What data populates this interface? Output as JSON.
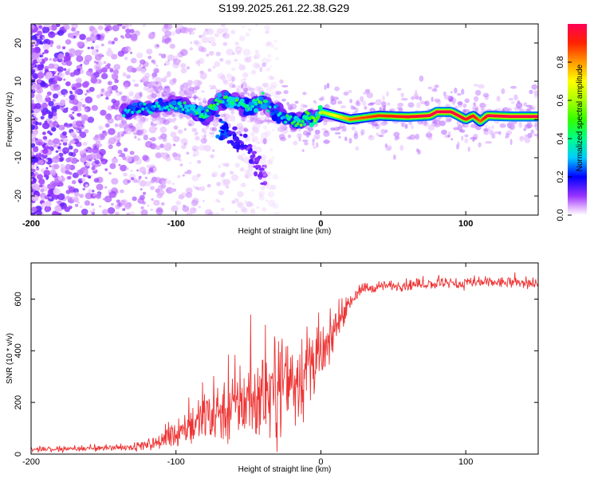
{
  "title": "S199.2025.261.22.38.G29",
  "chart_data": [
    {
      "type": "heatmap",
      "name": "spectrogram",
      "xlabel": "Height of straight line (km)",
      "ylabel": "Frequency (Hz)",
      "xlim": [
        -200,
        150
      ],
      "ylim": [
        -25,
        25
      ],
      "xticks": [
        -200,
        -100,
        0,
        100
      ],
      "yticks": [
        -20,
        -10,
        0,
        10,
        20
      ],
      "colorbar": {
        "label": "Normalized spectral amplitude",
        "range": [
          0,
          1
        ],
        "ticks": [
          0.0,
          0.2,
          0.4,
          0.6,
          0.8
        ],
        "tick_labels": [
          "0.0",
          "0.2",
          "0.4",
          "0.6",
          "0.8"
        ]
      },
      "ridge": {
        "x": [
          -135,
          -120,
          -100,
          -90,
          -80,
          -70,
          -60,
          -50,
          -40,
          -35,
          -30,
          -25,
          -20,
          -15,
          -10,
          -5,
          0,
          10,
          20,
          40,
          60,
          75,
          80,
          90,
          95,
          100,
          105,
          110,
          115,
          130,
          150
        ],
        "freq": [
          2,
          3,
          4,
          3,
          1,
          5,
          5,
          3,
          5,
          3,
          2,
          1,
          0,
          -1,
          1,
          0,
          2,
          1,
          0,
          1,
          0.7,
          1,
          2,
          2,
          1,
          0,
          1,
          -0.5,
          1,
          0.8,
          0.8
        ],
        "amplitude": [
          0.3,
          0.35,
          0.35,
          0.4,
          0.5,
          0.4,
          0.45,
          0.4,
          0.5,
          0.3,
          0.35,
          0.4,
          0.4,
          0.5,
          0.5,
          0.5,
          0.6,
          0.7,
          0.8,
          0.85,
          0.9,
          0.95,
          0.97,
          0.95,
          0.95,
          0.9,
          0.9,
          0.8,
          0.95,
          0.95,
          0.95
        ]
      },
      "secondary_branch": {
        "x": [
          -70,
          -60,
          -50,
          -45,
          -40
        ],
        "freq": [
          -2,
          -5,
          -8,
          -12,
          -14
        ],
        "amplitude": [
          0.25,
          0.2,
          0.15,
          0.12,
          0.1
        ]
      }
    },
    {
      "type": "line",
      "name": "snr",
      "xlabel": "Height of straight line (km)",
      "ylabel": "SNR (10 * v/v)",
      "xlim": [
        -200,
        150
      ],
      "ylim": [
        0,
        740
      ],
      "xticks": [
        -200,
        -100,
        0,
        100
      ],
      "yticks": [
        0,
        200,
        400,
        600
      ],
      "series": [
        {
          "name": "SNR",
          "color": "#ee3333",
          "x": [
            -200,
            -180,
            -160,
            -140,
            -120,
            -110,
            -100,
            -90,
            -80,
            -70,
            -60,
            -50,
            -40,
            -30,
            -25,
            -20,
            -15,
            -10,
            -5,
            0,
            5,
            10,
            15,
            20,
            25,
            30,
            40,
            60,
            80,
            100,
            120,
            150
          ],
          "y": [
            20,
            20,
            22,
            25,
            35,
            50,
            80,
            110,
            140,
            170,
            190,
            210,
            230,
            250,
            270,
            290,
            300,
            320,
            340,
            370,
            420,
            480,
            540,
            590,
            620,
            640,
            650,
            655,
            660,
            660,
            665,
            660
          ],
          "noise": [
            10,
            10,
            10,
            12,
            20,
            35,
            60,
            80,
            100,
            120,
            140,
            160,
            170,
            180,
            190,
            200,
            190,
            170,
            150,
            120,
            90,
            60,
            40,
            30,
            25,
            22,
            20,
            20,
            20,
            20,
            20,
            20
          ]
        }
      ]
    }
  ]
}
